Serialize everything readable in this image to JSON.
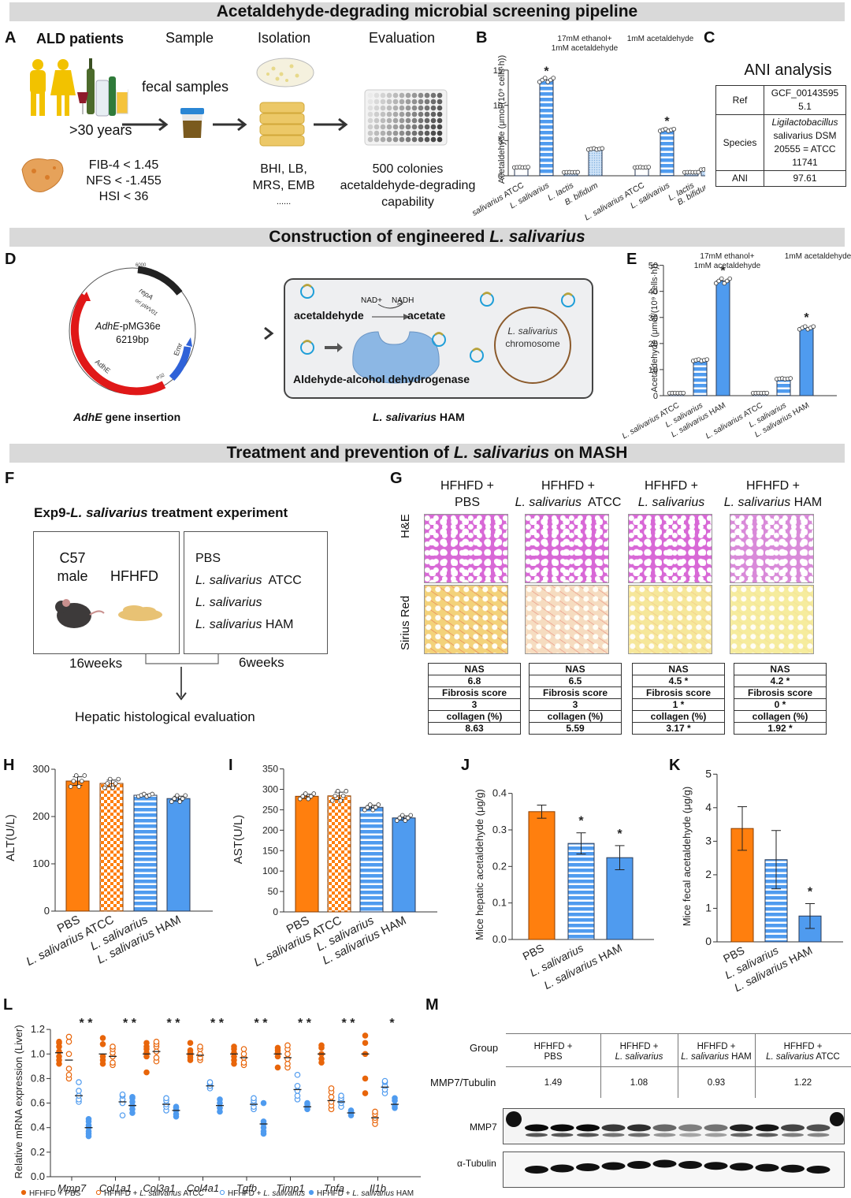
{
  "banners": {
    "section1": "Acetaldehyde-degrading microbial screening pipeline",
    "section2_prefix": "Construction of engineered ",
    "section2_italic": "L. salivarius",
    "section3_prefix": "Treatment and prevention of ",
    "section3_italic": "L. salivarius",
    "section3_suffix": " on MASH"
  },
  "panel_labels": [
    "A",
    "B",
    "C",
    "D",
    "E",
    "F",
    "G",
    "H",
    "I",
    "J",
    "K",
    "L",
    "M"
  ],
  "panelA": {
    "col_titles": [
      "ALD patients",
      "Sample",
      "Isolation",
      "Evaluation"
    ],
    "age": ">30 years",
    "fecal": "fecal samples",
    "criteria": [
      "FIB-4 < 1.45",
      "NFS < -1.455",
      "HSI < 36"
    ],
    "media": [
      "BHI, LB,",
      "MRS, EMB",
      "......"
    ],
    "evaluation": [
      "500 colonies",
      "acetaldehyde-degrading",
      "capability"
    ],
    "icons": [
      "patients-icon",
      "alcohol-bottles-icon",
      "liver-icon",
      "fecal-sample-cup-icon",
      "petri-dish-icon",
      "culture-plate-stack-icon",
      "well-plate-icon"
    ]
  },
  "panelC": {
    "title": "ANI analysis",
    "rows": [
      {
        "key": "Ref",
        "value_lines": [
          "GCF_00143595",
          "5.1"
        ]
      },
      {
        "key": "Species",
        "value_lines": [
          "Ligilactobacillus",
          "salivarius DSM",
          "20555 = ATCC",
          "11741"
        ]
      },
      {
        "key": "ANI",
        "value_lines": [
          "97.61"
        ]
      }
    ]
  },
  "panelD": {
    "plasmid_name_italic": "AdhE",
    "plasmid_name_rest": "-pMG36e",
    "plasmid_size": "6219bp",
    "features": [
      "repA",
      "ori pWV01",
      "Emr",
      "AdhE",
      "P32"
    ],
    "ticks": [
      "6000",
      "1000",
      "2000",
      "3000",
      "4000",
      "5000"
    ],
    "caption_italic": "AdhE",
    "caption_rest": " gene insertion",
    "cell": {
      "nad": "NAD+",
      "nadh": "NADH",
      "substrate": "acetaldehyde",
      "product": "acetate",
      "enzyme": "Aldehyde-alcohol dehydrogenase",
      "chromosome_italic": "L. salivarius",
      "chromosome_rest": "chromosome"
    },
    "cell_caption_italic": "L. salivarius",
    "cell_caption_rest": " HAM"
  },
  "panelF": {
    "title_prefix": "Exp9-",
    "title_italic": "L. salivarius",
    "title_suffix": " treatment experiment",
    "strain": [
      "C57",
      "male"
    ],
    "diet": "HFHFD",
    "groups": [
      {
        "italic": "",
        "rest": "PBS"
      },
      {
        "italic": "L. salivarius",
        "rest": "  ATCC"
      },
      {
        "italic": "L. salivarius",
        "rest": ""
      },
      {
        "italic": "L. salivarius",
        "rest": " HAM"
      }
    ],
    "duration1": "16weeks",
    "duration2": "6weeks",
    "outcome": "Hepatic histological evaluation"
  },
  "panelG": {
    "row_labels": [
      "H&E",
      "Sirius Red"
    ],
    "groups": [
      {
        "line1": "HFHFD +",
        "italic": "",
        "rest": "PBS",
        "nas": "6.8",
        "fibrosis": "3",
        "collagen": "8.63"
      },
      {
        "line1": "HFHFD +",
        "italic": "L. salivarius",
        "rest": "  ATCC",
        "nas": "6.5",
        "fibrosis": "3",
        "collagen": "5.59"
      },
      {
        "line1": "HFHFD +",
        "italic": "L. salivarius",
        "rest": "",
        "nas": "4.5 *",
        "fibrosis": "1 *",
        "collagen": "3.17 *"
      },
      {
        "line1": "HFHFD +",
        "italic": "L. salivarius",
        "rest": " HAM",
        "nas": "4.2 *",
        "fibrosis": "0 *",
        "collagen": "1.92 *"
      }
    ],
    "table_headers": [
      "NAS",
      "Fibrosis score",
      "collagen (%)"
    ]
  },
  "colors": {
    "orange": "#ff7f0e",
    "orange_dark": "#e8650a",
    "blue": "#4f9bef",
    "blue_light": "#a9cdf3",
    "banner": "#d9d9d9"
  },
  "chart_data": [
    {
      "id": "B",
      "type": "bar",
      "title": "",
      "group_titles": [
        "17mM ethanol+\n1mM acetaldehyde",
        "1mM acetaldehyde"
      ],
      "categories": [
        "L. salivarius ATCC",
        "L. salivarius",
        "L. lactis",
        "B. bifidum",
        "L. salivarius ATCC",
        "L. salivarius",
        "L. lactis",
        "B. bifidum"
      ],
      "values": [
        1.2,
        13.6,
        0.5,
        3.8,
        1.2,
        6.5,
        0.5,
        0.9
      ],
      "patterns": [
        "white",
        "stripe",
        "dots",
        "dotlight",
        "white",
        "stripe",
        "dots",
        "dotlight"
      ],
      "significant": [
        false,
        true,
        false,
        false,
        false,
        true,
        false,
        false
      ],
      "ylabel": "Acetaldehyde (μmol/(10⁹ cells·h))",
      "yticks": [
        0,
        5,
        10,
        15
      ],
      "ylim": [
        0,
        16
      ]
    },
    {
      "id": "E",
      "type": "bar",
      "group_titles": [
        "17mM ethanol+\n1mM acetaldehyde",
        "1mM acetaldehyde"
      ],
      "categories": [
        "L. salivarius ATCC",
        "L. salivarius",
        "L. salivarius HAM",
        "L. salivarius ATCC",
        "L. salivarius",
        "L. salivarius HAM"
      ],
      "values": [
        1.0,
        13.6,
        44.0,
        1.0,
        6.5,
        26.0
      ],
      "patterns": [
        "white",
        "stripe",
        "solid",
        "white",
        "stripe",
        "solid"
      ],
      "significant": [
        false,
        false,
        true,
        false,
        false,
        true
      ],
      "ylabel": "Acetaldehyde (μmol/(10⁹ cells·h))",
      "yticks": [
        0,
        10,
        20,
        30,
        40,
        50
      ],
      "ylim": [
        0,
        52
      ]
    },
    {
      "id": "H",
      "type": "bar",
      "categories": [
        "PBS",
        "L. salivarius ATCC",
        "L. salivarius",
        "L. salivarius HAM"
      ],
      "values": [
        275,
        270,
        245,
        238
      ],
      "errors": [
        9,
        7,
        2,
        5
      ],
      "patterns": [
        "orange",
        "check",
        "stripe",
        "solid"
      ],
      "ylabel": "ALT(U/L)",
      "yticks": [
        0,
        100,
        200,
        300
      ],
      "ylim": [
        0,
        310
      ]
    },
    {
      "id": "I",
      "type": "bar",
      "categories": [
        "PBS",
        "L. salivarius ATCC",
        "L. salivarius",
        "L. salivarius HAM"
      ],
      "values": [
        283,
        284,
        256,
        230
      ],
      "errors": [
        5,
        9,
        5,
        5
      ],
      "patterns": [
        "orange",
        "check",
        "stripe",
        "solid"
      ],
      "ylabel": "AST(U/L)",
      "yticks": [
        0,
        50,
        100,
        150,
        200,
        250,
        300,
        350
      ],
      "ylim": [
        0,
        355
      ]
    },
    {
      "id": "J",
      "type": "bar",
      "categories": [
        "PBS",
        "L. salivarius",
        "L. salivarius HAM"
      ],
      "values": [
        0.35,
        0.263,
        0.224
      ],
      "errors": [
        0.018,
        0.029,
        0.033
      ],
      "significant": [
        false,
        true,
        true
      ],
      "patterns": [
        "orange",
        "stripe",
        "solid"
      ],
      "ylabel": "Mice hepatic acetaldehyde (μg/g)",
      "yticks": [
        0.0,
        0.1,
        0.2,
        0.3,
        0.4
      ],
      "ylim": [
        0,
        0.41
      ]
    },
    {
      "id": "K",
      "type": "bar",
      "categories": [
        "PBS",
        "L. salivarius",
        "L. salivarius HAM"
      ],
      "values": [
        3.38,
        2.45,
        0.77
      ],
      "errors": [
        0.65,
        0.87,
        0.37
      ],
      "significant": [
        false,
        false,
        true
      ],
      "patterns": [
        "orange",
        "stripe",
        "solid"
      ],
      "ylabel": "Mice fecal acetaldehyde (μg/g)",
      "yticks": [
        0,
        1,
        2,
        3,
        4,
        5
      ],
      "ylim": [
        0,
        5.1
      ]
    },
    {
      "id": "L",
      "type": "scatter",
      "ylabel": "Relative mRNA expression (Liver)",
      "yticks": [
        0.0,
        0.2,
        0.4,
        0.6,
        0.8,
        1.0,
        1.2
      ],
      "ylim": [
        0,
        1.22
      ],
      "genes": [
        "Mmp7",
        "Col1a1",
        "Col3a1",
        "Col4a1",
        "Tgfb",
        "Timp1",
        "Tnfa",
        "Il1b"
      ],
      "legend": [
        "HFHFD + PBS",
        "HFHFD + L. salivarius ATCC",
        "HFHFD + L. salivarius",
        "HFHFD + L. salivarius HAM"
      ],
      "stars": [
        "* *",
        "* *",
        "* *",
        "* *",
        "* *",
        "* *",
        "* *",
        "*"
      ],
      "means": [
        [
          1.01,
          0.95,
          0.66,
          0.4
        ],
        [
          1.0,
          0.98,
          0.61,
          0.58
        ],
        [
          1.0,
          1.02,
          0.59,
          0.54
        ],
        [
          1.0,
          0.99,
          0.74,
          0.58
        ],
        [
          1.0,
          0.97,
          0.59,
          0.43
        ],
        [
          1.0,
          0.97,
          0.71,
          0.57
        ],
        [
          1.0,
          0.62,
          0.61,
          0.52
        ],
        [
          1.0,
          0.48,
          0.73,
          0.59
        ]
      ],
      "points": [
        [
          [
            0.92,
            0.95,
            0.98,
            1.02,
            1.06,
            1.09,
            1.1
          ],
          [
            0.8,
            0.83,
            0.88,
            1.0,
            1.1,
            1.14
          ],
          [
            0.61,
            0.63,
            0.66,
            0.7,
            0.77
          ],
          [
            0.33,
            0.35,
            0.37,
            0.4,
            0.42,
            0.45,
            0.47
          ]
        ],
        [
          [
            0.92,
            0.95,
            0.98,
            1.08,
            1.13
          ],
          [
            0.91,
            0.93,
            0.98,
            1.01,
            1.04,
            1.06
          ],
          [
            0.5,
            0.6,
            0.63,
            0.66,
            0.67
          ],
          [
            0.52,
            0.55,
            0.58,
            0.61,
            0.64,
            0.65
          ]
        ],
        [
          [
            0.85,
            0.98,
            1.01,
            1.04,
            1.06,
            1.09
          ],
          [
            0.94,
            0.97,
            1.02,
            1.06,
            1.08,
            1.1
          ],
          [
            0.54,
            0.57,
            0.59,
            0.62,
            0.64
          ],
          [
            0.49,
            0.51,
            0.54,
            0.56,
            0.57
          ]
        ],
        [
          [
            0.95,
            0.97,
            0.99,
            1.01,
            1.03,
            1.09
          ],
          [
            0.95,
            0.97,
            1.0,
            1.04,
            1.06
          ],
          [
            0.72,
            0.74,
            0.76,
            0.77
          ],
          [
            0.53,
            0.56,
            0.6,
            0.63
          ]
        ],
        [
          [
            0.92,
            0.95,
            0.98,
            1.01,
            1.04,
            1.06
          ],
          [
            0.91,
            0.93,
            0.97,
            1.0,
            1.04
          ],
          [
            0.55,
            0.57,
            0.6,
            0.62,
            0.64
          ],
          [
            0.35,
            0.37,
            0.4,
            0.43,
            0.45,
            0.6
          ]
        ],
        [
          [
            0.89,
            0.98,
            1.01,
            1.03,
            1.05
          ],
          [
            0.89,
            0.92,
            0.96,
            1.0,
            1.04,
            1.07
          ],
          [
            0.63,
            0.66,
            0.7,
            0.74,
            0.83
          ],
          [
            0.55,
            0.57,
            0.59,
            0.6
          ]
        ],
        [
          [
            0.93,
            0.96,
            1.0,
            1.05,
            1.07
          ],
          [
            0.55,
            0.58,
            0.61,
            0.65,
            0.69,
            0.72
          ],
          [
            0.57,
            0.6,
            0.62,
            0.64,
            0.66
          ],
          [
            0.5,
            0.52,
            0.53,
            0.54
          ]
        ],
        [
          [
            0.68,
            0.8,
            1.0,
            1.09,
            1.15
          ],
          [
            0.43,
            0.46,
            0.48,
            0.51,
            0.53
          ],
          [
            0.68,
            0.71,
            0.74,
            0.77,
            0.78
          ],
          [
            0.56,
            0.58,
            0.62,
            0.64
          ]
        ]
      ]
    },
    {
      "id": "M",
      "type": "table",
      "row_headers": [
        "Group",
        "MMP7/Tubulin"
      ],
      "groups": [
        {
          "line1": "HFHFD +",
          "italic": "",
          "rest": "PBS",
          "ratio": "1.49"
        },
        {
          "line1": "HFHFD +",
          "italic": "L. salivarius",
          "rest": "",
          "ratio": "1.08"
        },
        {
          "line1": "HFHFD +",
          "italic": "L. salivarius",
          "rest": " HAM",
          "ratio": "0.93"
        },
        {
          "line1": "HFHFD +",
          "italic": "L. salivarius",
          "rest": " ATCC",
          "ratio": "1.22"
        }
      ],
      "blot_labels": [
        "MMP7",
        "α-Tubulin"
      ],
      "lanes": 12
    }
  ]
}
